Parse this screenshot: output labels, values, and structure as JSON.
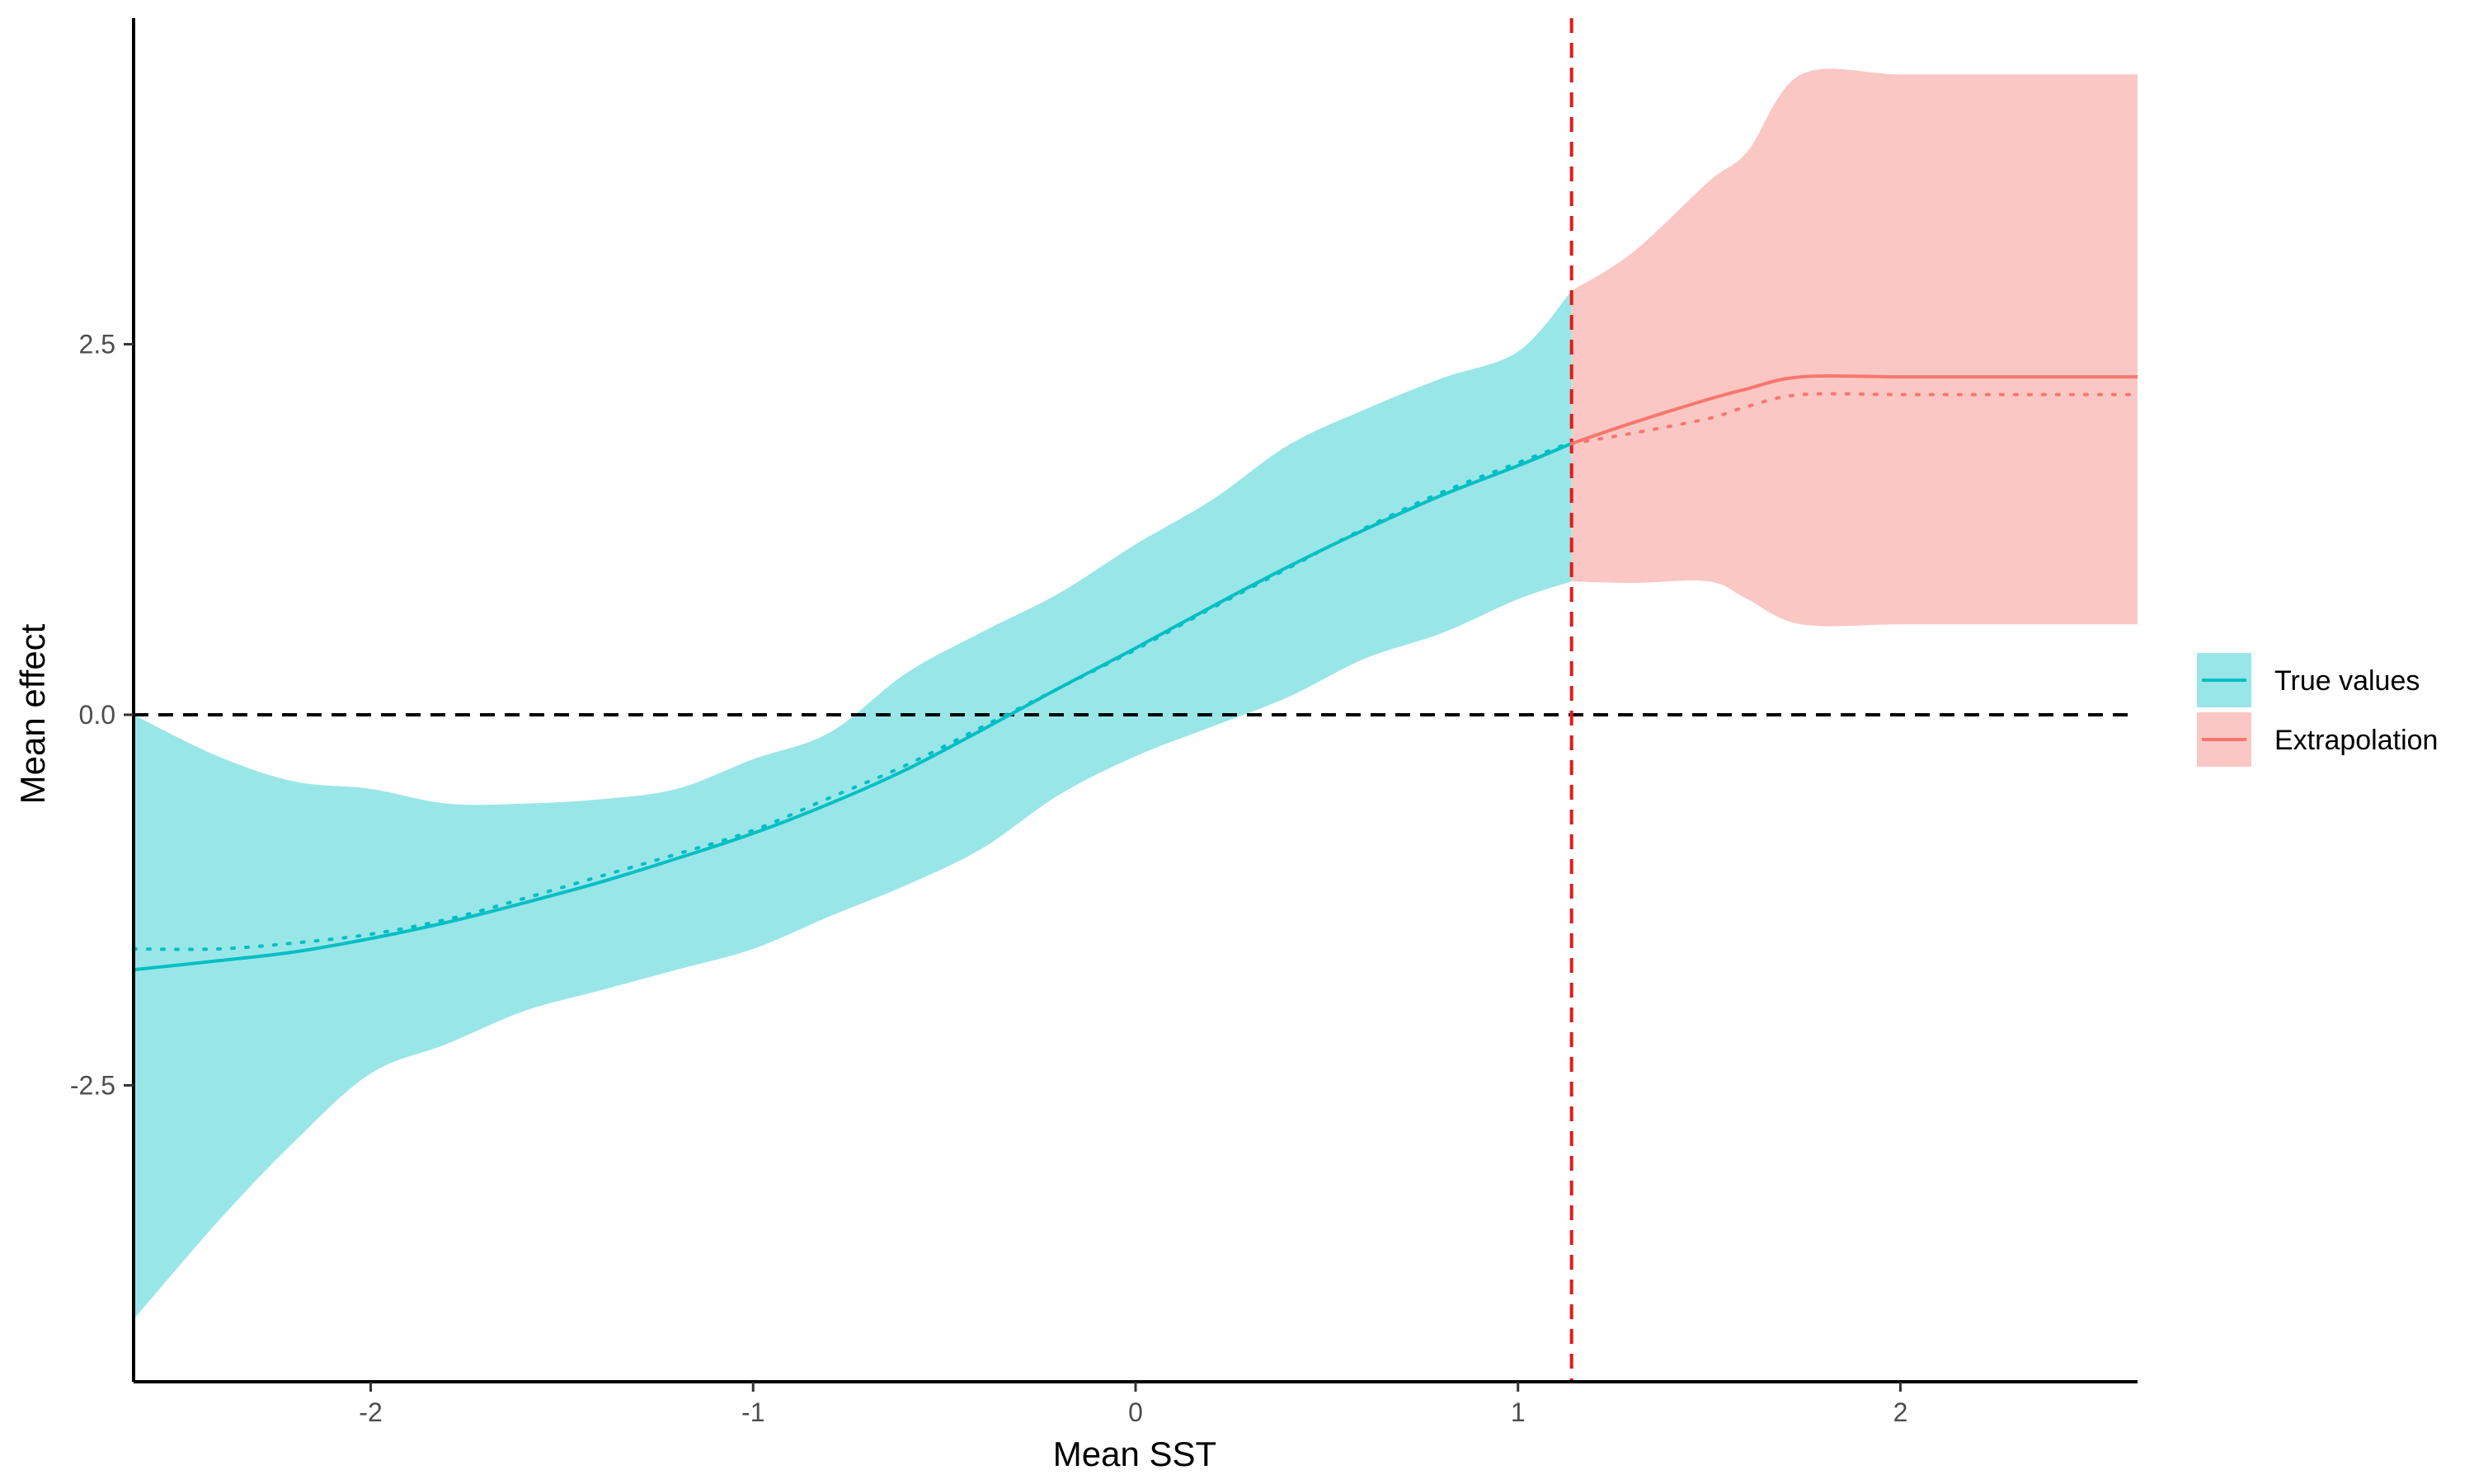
{
  "chart_data": {
    "type": "line",
    "xlabel": "Mean SST",
    "ylabel": "Mean effect",
    "xlim": [
      -2.62,
      2.62
    ],
    "ylim": [
      -4.5,
      4.7
    ],
    "x_ticks": [
      -2,
      -1,
      0,
      1,
      2
    ],
    "x_tick_labels": [
      "-2",
      "-1",
      "0",
      "1",
      "2"
    ],
    "y_ticks": [
      -2.5,
      0.0,
      2.5
    ],
    "y_tick_labels": [
      "-2.5",
      "0.0",
      "2.5"
    ],
    "grid": false,
    "legend_placement": "right",
    "reference_lines": [
      {
        "orientation": "horizontal",
        "value": 0,
        "style": "dashed",
        "color": "#000000"
      },
      {
        "orientation": "vertical",
        "value": 1.14,
        "style": "dashed",
        "color": "#e41a1c"
      }
    ],
    "series": [
      {
        "name": "True values",
        "color": "#00bfc4",
        "band_color": "#99e6e8",
        "x": [
          -2.62,
          -2.4,
          -2.2,
          -2.0,
          -1.8,
          -1.6,
          -1.4,
          -1.2,
          -1.0,
          -0.8,
          -0.6,
          -0.4,
          -0.2,
          0.0,
          0.2,
          0.4,
          0.6,
          0.8,
          1.0,
          1.14
        ],
        "fit": [
          -1.72,
          -1.66,
          -1.6,
          -1.51,
          -1.4,
          -1.27,
          -1.13,
          -0.97,
          -0.8,
          -0.6,
          -0.37,
          -0.1,
          0.18,
          0.45,
          0.73,
          1.0,
          1.25,
          1.48,
          1.68,
          1.83
        ],
        "true": [
          -1.58,
          -1.58,
          -1.54,
          -1.48,
          -1.38,
          -1.24,
          -1.09,
          -0.94,
          -0.78,
          -0.56,
          -0.34,
          -0.08,
          0.18,
          0.44,
          0.72,
          0.99,
          1.26,
          1.5,
          1.7,
          1.84
        ],
        "lower": [
          -4.08,
          -3.42,
          -2.88,
          -2.42,
          -2.22,
          -2.0,
          -1.86,
          -1.72,
          -1.58,
          -1.36,
          -1.15,
          -0.9,
          -0.54,
          -0.28,
          -0.08,
          0.12,
          0.38,
          0.55,
          0.78,
          0.9
        ],
        "upper": [
          0.0,
          -0.28,
          -0.45,
          -0.5,
          -0.6,
          -0.6,
          -0.57,
          -0.5,
          -0.3,
          -0.12,
          0.28,
          0.56,
          0.82,
          1.15,
          1.45,
          1.82,
          2.06,
          2.27,
          2.45,
          2.86
        ]
      },
      {
        "name": "Extrapolation",
        "color": "#f8766d",
        "band_color": "#fac7c4",
        "x": [
          1.14,
          1.3,
          1.5,
          1.6,
          1.74,
          2.0,
          2.3,
          2.62
        ],
        "fit": [
          1.83,
          1.97,
          2.13,
          2.2,
          2.28,
          2.28,
          2.28,
          2.28
        ],
        "true": [
          1.83,
          1.9,
          2.0,
          2.08,
          2.16,
          2.16,
          2.16,
          2.16
        ],
        "lower": [
          0.9,
          0.89,
          0.9,
          0.78,
          0.61,
          0.61,
          0.61,
          0.61
        ],
        "upper": [
          2.86,
          3.12,
          3.6,
          3.8,
          4.32,
          4.32,
          4.32,
          4.32
        ]
      }
    ]
  }
}
